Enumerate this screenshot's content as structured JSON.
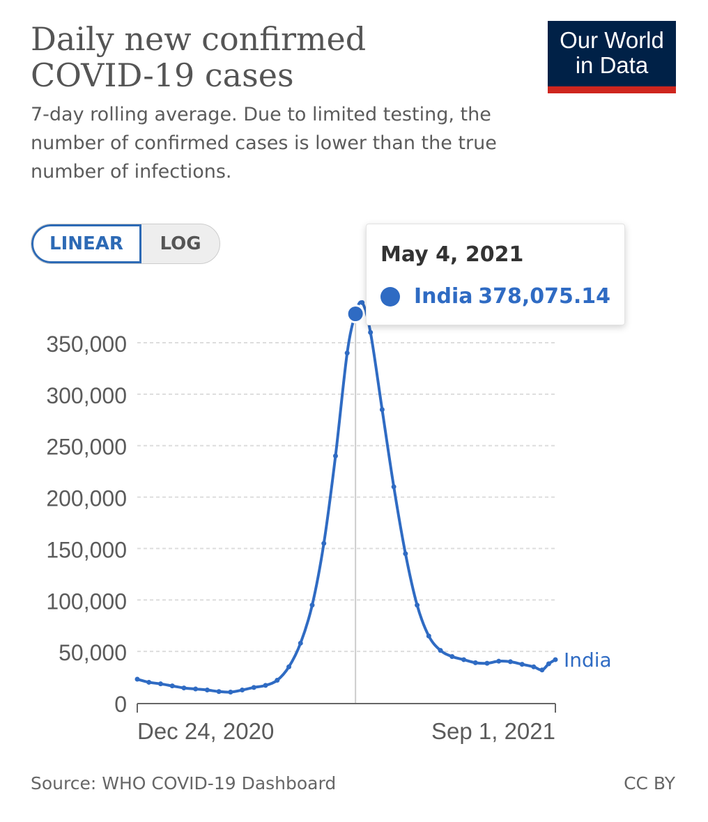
{
  "header": {
    "title_line1": "Daily new confirmed",
    "title_line2": "COVID-19 cases",
    "subtitle": "7-day rolling average. Due to limited testing, the number of confirmed cases is lower than the true number of infections."
  },
  "logo": {
    "line1": "Our World",
    "line2": "in Data",
    "background": "#002147",
    "accent": "#ce261e"
  },
  "controls": {
    "linear_label": "LINEAR",
    "log_label": "LOG",
    "selected": "LINEAR"
  },
  "tooltip": {
    "date": "May 4, 2021",
    "entity": "India",
    "value": "378,075.14"
  },
  "footer": {
    "source": "Source: WHO COVID-19 Dashboard",
    "license": "CC BY"
  },
  "colors": {
    "series": "#2f6bc3",
    "grid": "#dddddd",
    "axis_text": "#5b5b5b"
  },
  "chart_data": {
    "type": "line",
    "title": "Daily new confirmed COVID-19 cases",
    "subtitle": "7-day rolling average. Due to limited testing, the number of confirmed cases is lower than the true number of infections.",
    "xlabel": "",
    "ylabel": "",
    "x_range": [
      "2020-12-24",
      "2021-09-01"
    ],
    "x_tick_labels": [
      "Dec 24, 2020",
      "Sep 1, 2021"
    ],
    "ylim": [
      0,
      350000
    ],
    "y_ticks": [
      0,
      50000,
      100000,
      150000,
      200000,
      250000,
      300000,
      350000
    ],
    "y_tick_labels": [
      "0",
      "50,000",
      "100,000",
      "150,000",
      "200,000",
      "250,000",
      "300,000",
      "350,000"
    ],
    "grid": true,
    "series": [
      {
        "name": "India",
        "color": "#2f6bc3",
        "points": [
          [
            "2020-12-24",
            23000
          ],
          [
            "2020-12-31",
            20000
          ],
          [
            "2021-01-07",
            18500
          ],
          [
            "2021-01-14",
            16500
          ],
          [
            "2021-01-21",
            14500
          ],
          [
            "2021-01-28",
            13500
          ],
          [
            "2021-02-04",
            12500
          ],
          [
            "2021-02-11",
            11000
          ],
          [
            "2021-02-18",
            10500
          ],
          [
            "2021-02-25",
            12500
          ],
          [
            "2021-03-04",
            15000
          ],
          [
            "2021-03-11",
            17000
          ],
          [
            "2021-03-18",
            22000
          ],
          [
            "2021-03-25",
            35000
          ],
          [
            "2021-04-01",
            58000
          ],
          [
            "2021-04-08",
            95000
          ],
          [
            "2021-04-15",
            155000
          ],
          [
            "2021-04-22",
            240000
          ],
          [
            "2021-04-29",
            340000
          ],
          [
            "2021-05-04",
            378075.14
          ],
          [
            "2021-05-08",
            389000
          ],
          [
            "2021-05-13",
            360000
          ],
          [
            "2021-05-20",
            285000
          ],
          [
            "2021-05-27",
            210000
          ],
          [
            "2021-06-03",
            145000
          ],
          [
            "2021-06-10",
            95000
          ],
          [
            "2021-06-17",
            65000
          ],
          [
            "2021-06-24",
            51000
          ],
          [
            "2021-07-01",
            45000
          ],
          [
            "2021-07-08",
            42000
          ],
          [
            "2021-07-15",
            39000
          ],
          [
            "2021-07-22",
            38500
          ],
          [
            "2021-07-29",
            40500
          ],
          [
            "2021-08-05",
            40000
          ],
          [
            "2021-08-12",
            37500
          ],
          [
            "2021-08-19",
            35000
          ],
          [
            "2021-08-24",
            32000
          ],
          [
            "2021-08-28",
            38000
          ],
          [
            "2021-09-01",
            42000
          ]
        ]
      }
    ],
    "end_label": "India",
    "highlighted_point": {
      "x": "2021-05-04",
      "y": 378075.14
    }
  }
}
